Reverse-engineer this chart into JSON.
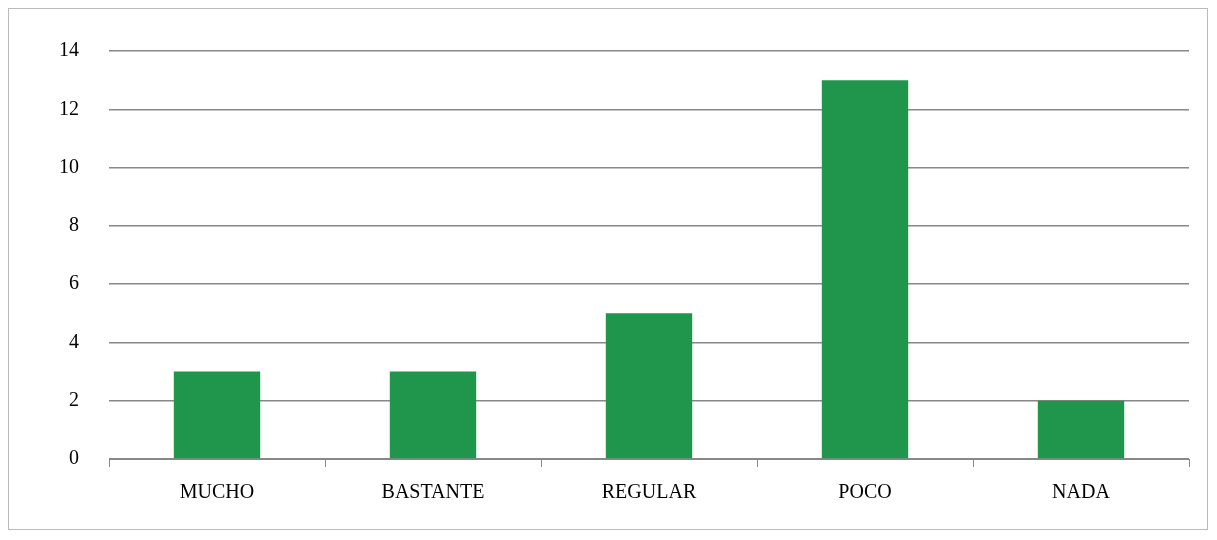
{
  "chart_data": {
    "type": "bar",
    "categories": [
      "MUCHO",
      "BASTANTE",
      "REGULAR",
      "POCO",
      "NADA"
    ],
    "values": [
      3,
      3,
      5,
      13,
      2
    ],
    "color": "#1f964b",
    "ylim": [
      0,
      14
    ],
    "yticks": [
      0,
      2,
      4,
      6,
      8,
      10,
      12,
      14
    ],
    "grid": "y"
  }
}
